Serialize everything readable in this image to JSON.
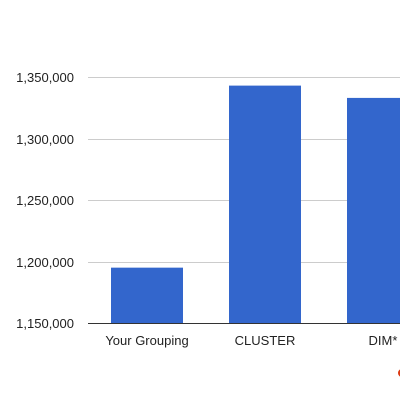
{
  "chart_data": {
    "type": "bar",
    "categories": [
      "Your Grouping",
      "CLUSTER",
      "DIM*"
    ],
    "values": [
      1195000,
      1343000,
      1333000
    ],
    "y_ticks": [
      1150000,
      1200000,
      1250000,
      1300000,
      1350000
    ],
    "y_tick_labels": [
      "1,150,000",
      "1,200,000",
      "1,250,000",
      "1,300,000",
      "1,350,000"
    ],
    "ylim": [
      1150000,
      1370000
    ],
    "grid": true,
    "legend": "none",
    "bar_color": "#3366cc",
    "grid_color": "#cccccc",
    "partial_marker_color": "#dc3912"
  }
}
